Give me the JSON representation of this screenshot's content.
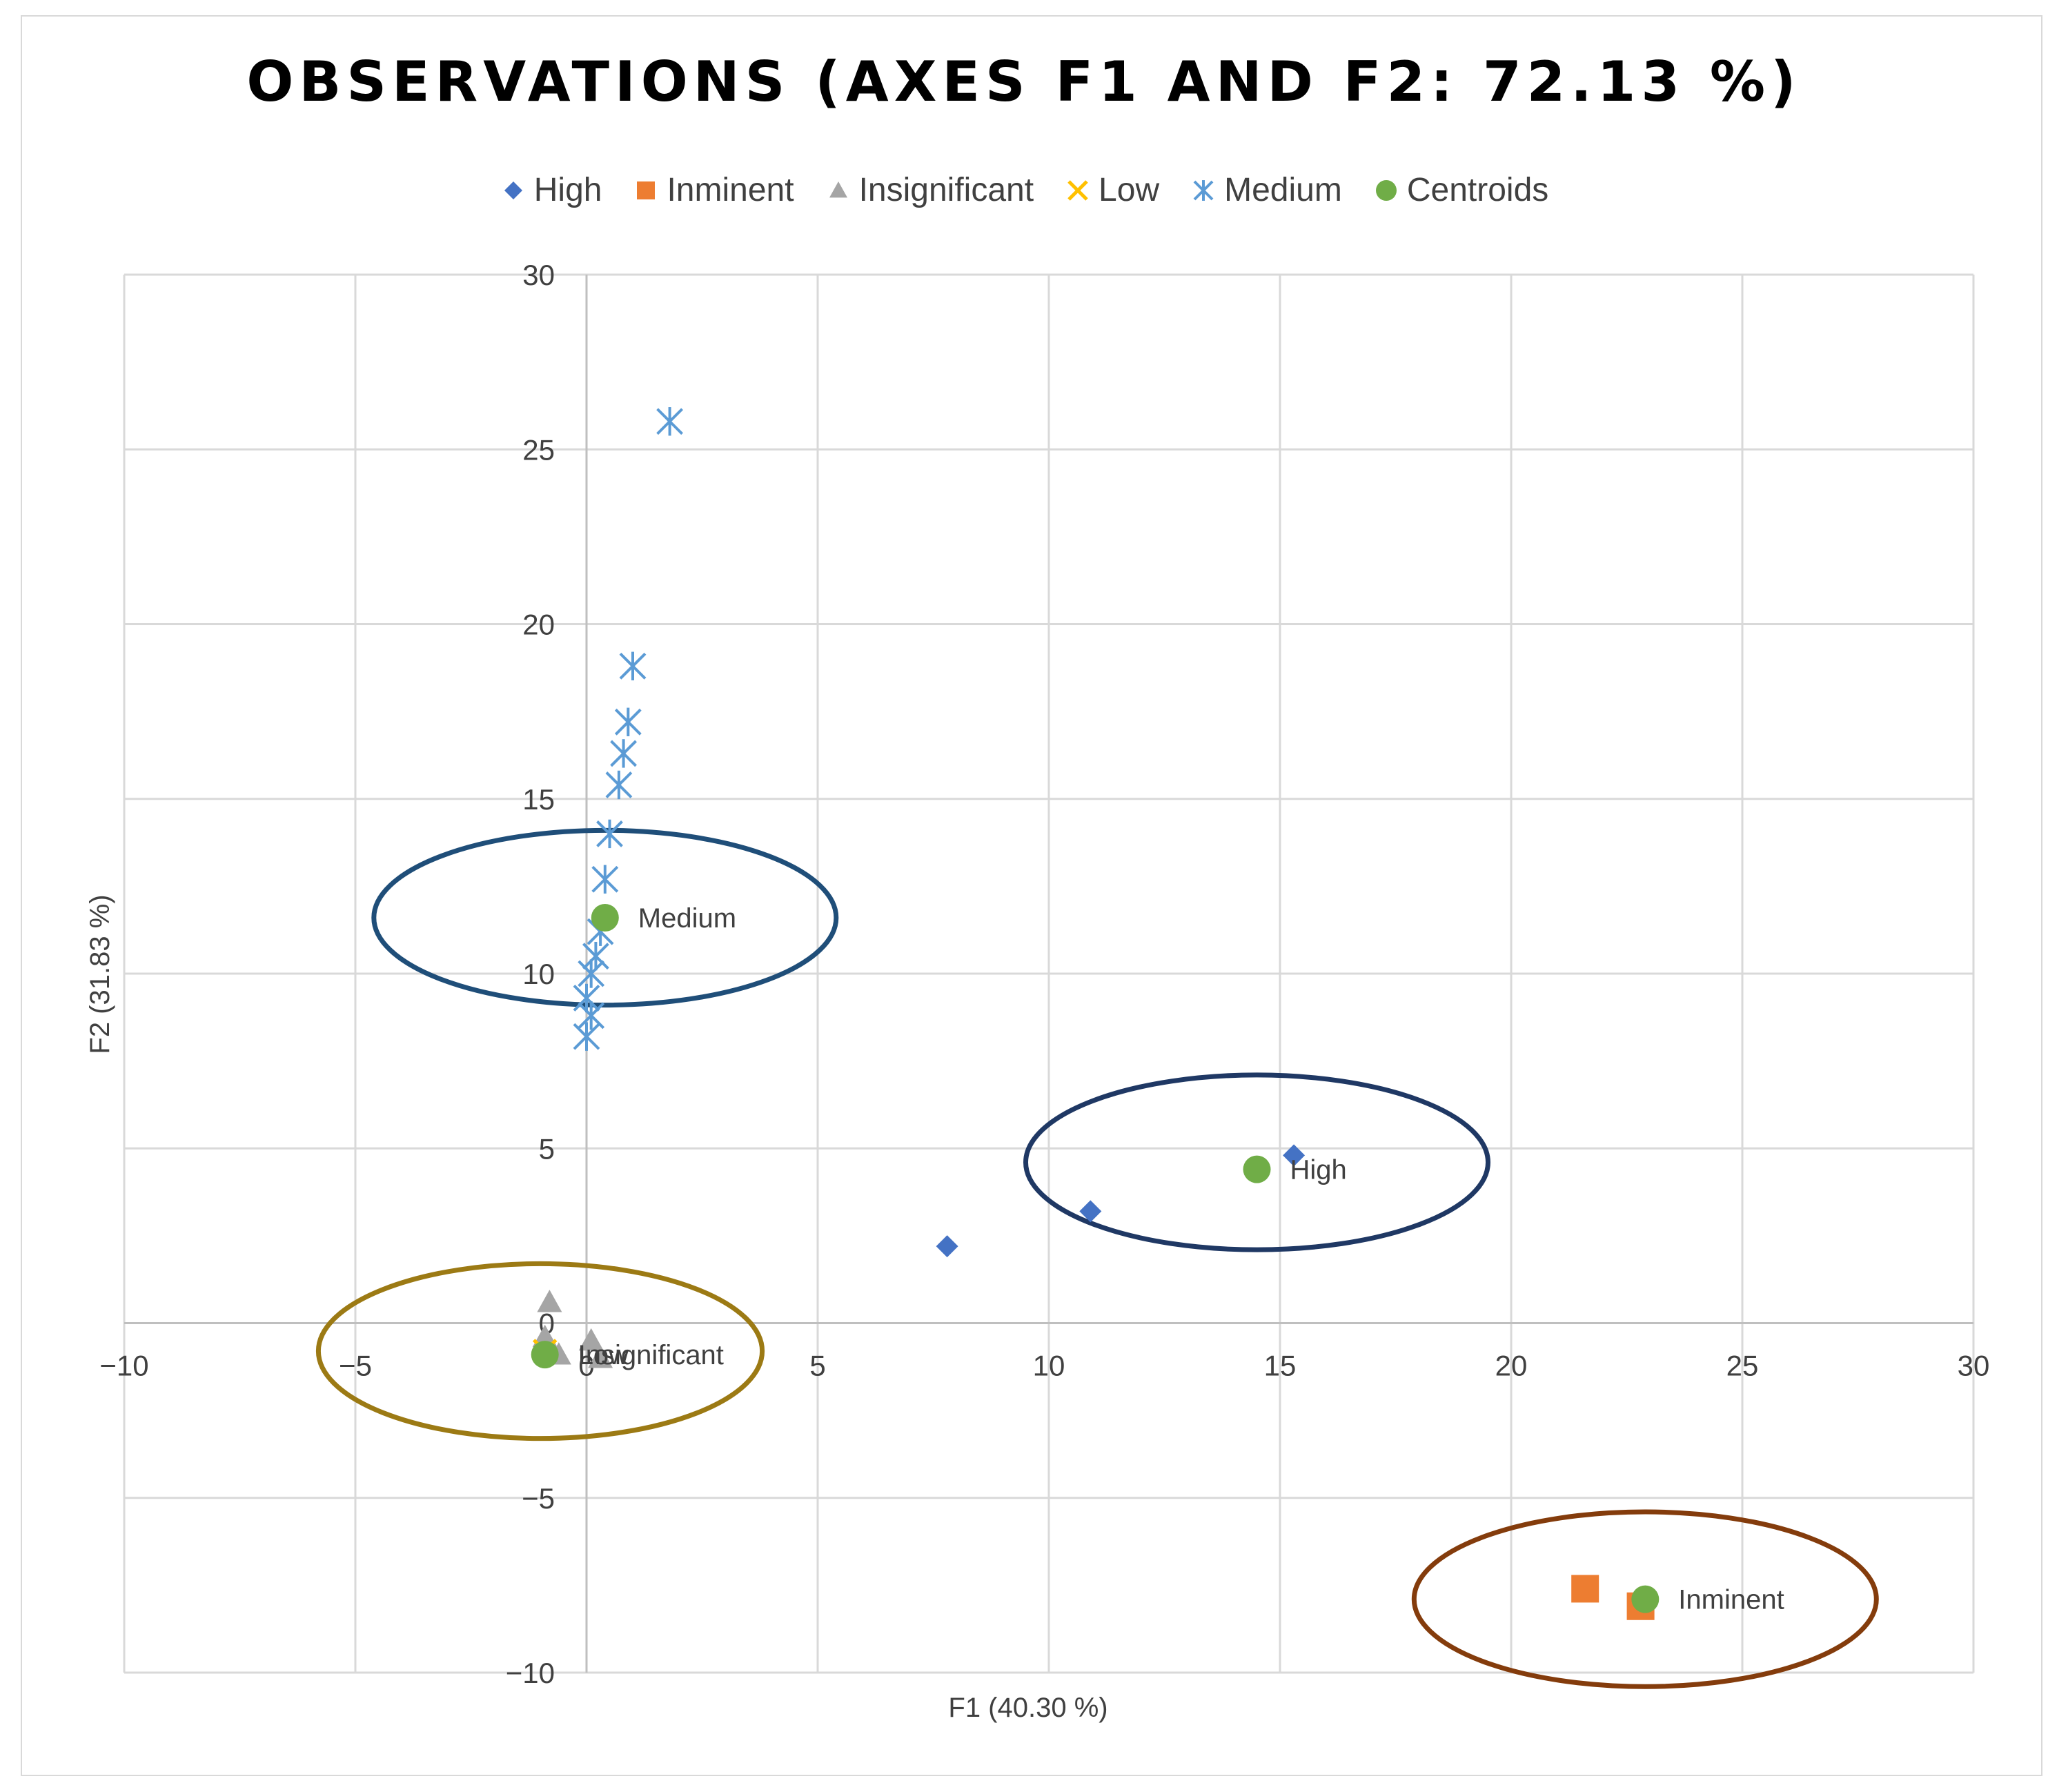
{
  "chart_data": {
    "type": "scatter",
    "title": "OBSERVATIONS (AXES F1 AND F2: 72.13 %)",
    "xlabel": "F1 (40.30 %)",
    "ylabel": "F2 (31.83 %)",
    "xlim": [
      -10,
      30
    ],
    "ylim": [
      -10,
      30
    ],
    "xticks": [
      -10,
      -5,
      0,
      5,
      10,
      15,
      20,
      25,
      30
    ],
    "yticks": [
      -10,
      -5,
      0,
      5,
      10,
      15,
      20,
      25,
      30
    ],
    "grid": true,
    "legend_position": "top-center",
    "series": [
      {
        "name": "High",
        "marker": "diamond",
        "color": "#4472C4",
        "points": [
          [
            7.8,
            2.2
          ],
          [
            10.9,
            3.2
          ],
          [
            15.3,
            4.8
          ]
        ]
      },
      {
        "name": "Inminent",
        "marker": "square",
        "color": "#ED7D31",
        "points": [
          [
            21.6,
            -7.6
          ],
          [
            22.8,
            -8.1
          ]
        ]
      },
      {
        "name": "Insignificant",
        "marker": "triangle",
        "color": "#A5A5A5",
        "points": [
          [
            -0.8,
            0.6
          ],
          [
            0.1,
            -0.5
          ],
          [
            -0.6,
            -0.9
          ],
          [
            0.3,
            -1.0
          ],
          [
            -0.9,
            -0.4
          ]
        ]
      },
      {
        "name": "Low",
        "marker": "x",
        "color": "#FFC000",
        "points": [
          [
            -0.9,
            -0.8
          ]
        ]
      },
      {
        "name": "Medium",
        "marker": "star",
        "color": "#5B9BD5",
        "points": [
          [
            1.8,
            25.8
          ],
          [
            1.0,
            18.8
          ],
          [
            0.9,
            17.2
          ],
          [
            0.8,
            16.3
          ],
          [
            0.7,
            15.4
          ],
          [
            0.5,
            14.0
          ],
          [
            0.4,
            12.7
          ],
          [
            0.3,
            11.2
          ],
          [
            0.2,
            10.5
          ],
          [
            0.1,
            10.0
          ],
          [
            0.0,
            9.3
          ],
          [
            0.1,
            8.8
          ],
          [
            0.0,
            8.2
          ]
        ]
      },
      {
        "name": "Centroids",
        "marker": "circle",
        "color": "#70AD47",
        "points": [
          [
            0.4,
            11.6
          ],
          [
            14.5,
            4.4
          ],
          [
            22.9,
            -7.9
          ],
          [
            -0.9,
            -0.9
          ]
        ]
      }
    ],
    "centroid_labels": [
      {
        "text": "Medium",
        "x": 0.4,
        "y": 11.6
      },
      {
        "text": "High",
        "x": 14.5,
        "y": 4.4
      },
      {
        "text": "Inminent",
        "x": 22.9,
        "y": -7.9
      },
      {
        "text": "Insignificant",
        "x": -0.9,
        "y": -0.9
      },
      {
        "text": "Low",
        "x": -0.9,
        "y": -0.9
      }
    ],
    "ellipses": [
      {
        "name": "Medium",
        "color": "#1F4E79",
        "cx": 0.4,
        "cy": 11.6,
        "rx": 5.0,
        "ry": 2.5
      },
      {
        "name": "High",
        "color": "#1F3864",
        "cx": 14.5,
        "cy": 4.6,
        "rx": 5.0,
        "ry": 2.5
      },
      {
        "name": "Inminent",
        "color": "#843C0C",
        "cx": 22.9,
        "cy": -7.9,
        "rx": 5.0,
        "ry": 2.5
      },
      {
        "name": "Insignificant-Low",
        "color": "#9C7A14",
        "cx": -1.0,
        "cy": -0.8,
        "rx": 4.8,
        "ry": 2.5
      }
    ]
  }
}
